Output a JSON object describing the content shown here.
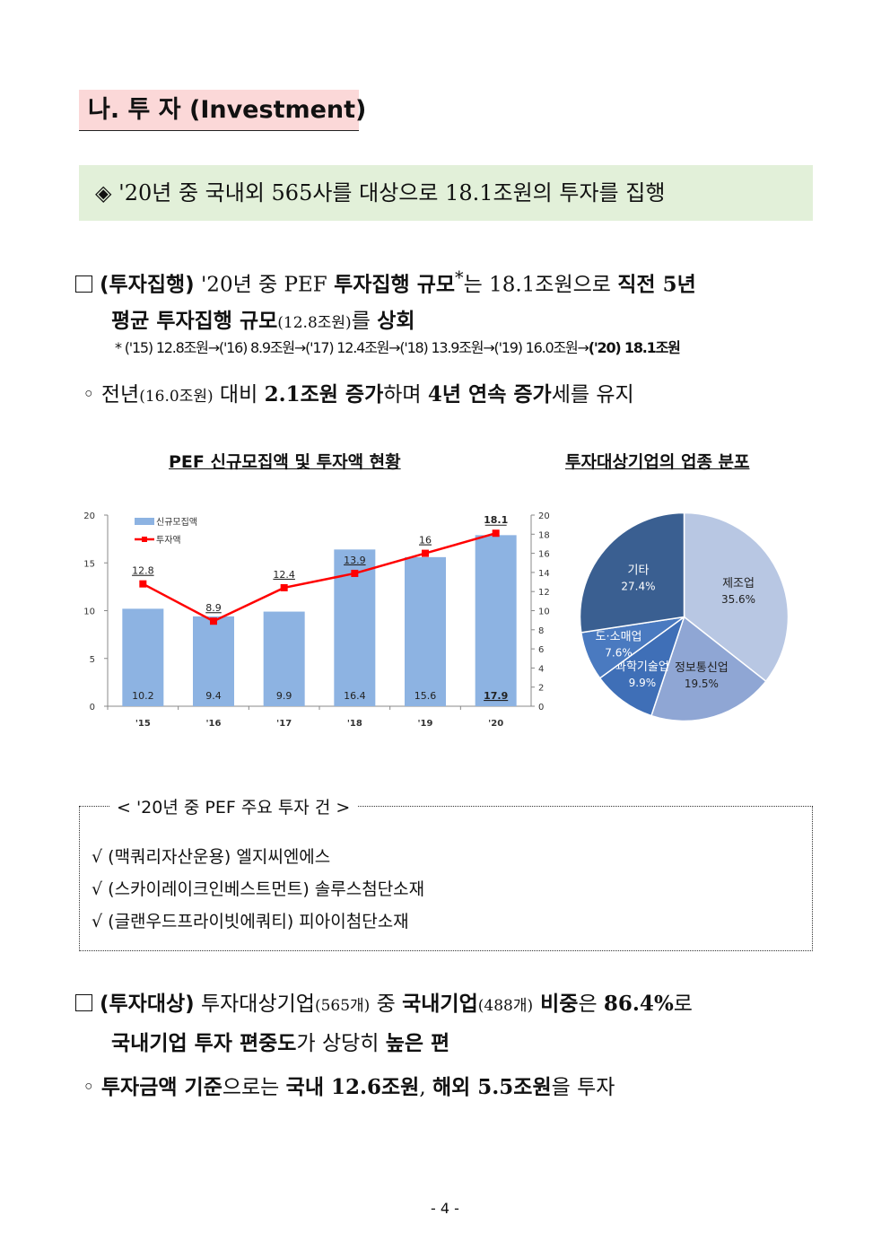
{
  "section_title": "나. 투 자 (Investment)",
  "summary": {
    "diamond": "◈",
    "text": "'20년 중 국내외 565사를 대상으로 18.1조원의 투자를 집행"
  },
  "para1": {
    "label": "(투자집행)",
    "t1": " '20년 중 PEF ",
    "b1": "투자집행 규모",
    "sup": "*",
    "t2": "는 18.1조원으로 ",
    "b2": "직전 5년",
    "line2_b": "평균 투자집행 규모",
    "line2_small": "(12.8조원)",
    "line2_t": "를 ",
    "line2_b2": "상회"
  },
  "note": {
    "star": "*",
    "text": "('15) 12.8조원→('16) 8.9조원→('17) 12.4조원→('18) 13.9조원→('19) 16.0조원→",
    "bold": "('20) 18.1조원"
  },
  "bullet2": {
    "marker": "◦",
    "t1": "전년",
    "small": "(16.0조원)",
    "t2": " 대비 ",
    "b1": "2.1조원 증가",
    "t3": "하며 ",
    "b2": "4년 연속 증가",
    "t4": "세를 유지"
  },
  "chart_titles": {
    "bar_line": "PEF 신규모집액 및 투자액 현황",
    "pie": "투자대상기업의 업종 분포"
  },
  "chart_data": [
    {
      "type": "bar",
      "categories": [
        "'15",
        "'16",
        "'17",
        "'18",
        "'19",
        "'20"
      ],
      "series": [
        {
          "name": "신규모집액",
          "type": "bar",
          "axis": "left",
          "values": [
            10.2,
            9.4,
            9.9,
            16.4,
            15.6,
            17.9
          ],
          "color": "#8db3e2"
        },
        {
          "name": "투자액",
          "type": "line",
          "axis": "right",
          "values": [
            12.8,
            8.9,
            12.4,
            13.9,
            16,
            18.1
          ],
          "color": "#ff0000"
        }
      ],
      "y_left": {
        "min": 0,
        "max": 20,
        "ticks": [
          "0",
          "5",
          "10",
          "15",
          "20"
        ]
      },
      "y_right": {
        "min": 0,
        "max": 20,
        "ticks": [
          "0",
          "2",
          "4",
          "6",
          "8",
          "10",
          "12",
          "14",
          "16",
          "18",
          "20"
        ]
      },
      "bar_labels": [
        "10.2",
        "9.4",
        "9.9",
        "16.4",
        "15.6",
        "17.9"
      ],
      "line_labels": [
        "12.8",
        "8.9",
        "12.4",
        "13.9",
        "16",
        "18.1"
      ],
      "legend_position": "top-left"
    },
    {
      "type": "pie",
      "slices": [
        {
          "label": "제조업",
          "value": 35.6,
          "text": "35.6%",
          "color": "#b8c7e3"
        },
        {
          "label": "정보통신업",
          "value": 19.5,
          "text": "19.5%",
          "color": "#8fa6d4"
        },
        {
          "label": "과학기술업",
          "value": 9.9,
          "text": "9.9%",
          "color": "#3f6fb7"
        },
        {
          "label": "도·소매업",
          "value": 7.6,
          "text": "7.6%",
          "color": "#4a7ac0"
        },
        {
          "label": "기타",
          "value": 27.4,
          "text": "27.4%",
          "color": "#3a5f91"
        }
      ]
    }
  ],
  "investments": {
    "title": "< '20년 중 PEF 주요 투자 건 >",
    "check": "√",
    "items": [
      "(맥쿼리자산운용) 엘지씨엔에스",
      "(스카이레이크인베스트먼트) 솔루스첨단소재",
      "(글랜우드프라이빗에쿼티) 피아이첨단소재"
    ]
  },
  "para2": {
    "label": "(투자대상)",
    "t1": " 투자대상기업",
    "s1": "(565개)",
    "t2": " 중 ",
    "b1": "국내기업",
    "s2": "(488개)",
    "b2": " 비중",
    "t3": "은 ",
    "b3": "86.4%",
    "t4": "로",
    "line2_b1": "국내기업 투자 편중도",
    "line2_t1": "가 상당히 ",
    "line2_b2": "높은 편"
  },
  "bullet3": {
    "marker": "◦",
    "b1": "투자금액 기준",
    "t1": "으로는 ",
    "b2": "국내 12.6조원",
    "t2": ", ",
    "b3": "해외 5.5조원",
    "t3": "을 투자"
  },
  "page_number": "- 4 -"
}
